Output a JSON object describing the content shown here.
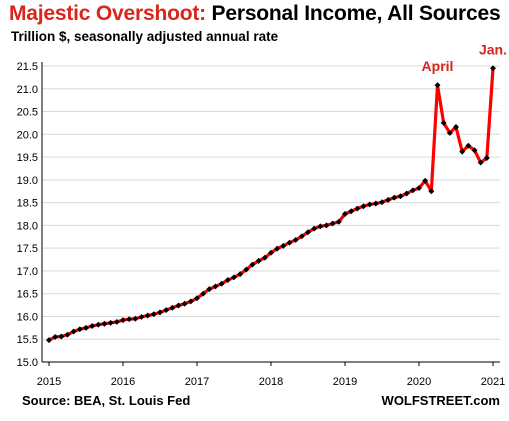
{
  "title": {
    "accent": "Majestic Overshoot:",
    "rest": " Personal Income, All Sources"
  },
  "subtitle": "Trillion $, seasonally adjusted annual rate",
  "source": "Source: BEA, St. Louis Fed",
  "brand": "WOLFSTREET.com",
  "colors": {
    "line": "#ff0000",
    "marker": "#000000",
    "accent": "#d9261c",
    "grid": "#d9d9d9"
  },
  "chart_data": {
    "type": "line",
    "title": "Majestic Overshoot: Personal Income, All Sources",
    "ylabel": "Trillion $, seasonally adjusted annual rate",
    "xlabel": "",
    "x_ticks": [
      "2015",
      "2016",
      "2017",
      "2018",
      "2019",
      "2020",
      "2021"
    ],
    "y_ticks": [
      "15.0",
      "15.5",
      "16.0",
      "16.5",
      "17.0",
      "17.5",
      "18.0",
      "18.5",
      "19.0",
      "19.5",
      "20.0",
      "20.5",
      "21.0",
      "21.5"
    ],
    "ylim": [
      15.0,
      21.5
    ],
    "xlim": [
      "2015-01",
      "2021-01"
    ],
    "grid": "horizontal",
    "markers": true,
    "annotations": [
      {
        "text": "April",
        "x": "2020-04",
        "y": 21.08
      },
      {
        "text": "Jan.",
        "x": "2021-01",
        "y": 21.45
      }
    ],
    "series": [
      {
        "x": [
          "2015-01",
          "2015-02",
          "2015-03",
          "2015-04",
          "2015-05",
          "2015-06",
          "2015-07",
          "2015-08",
          "2015-09",
          "2015-10",
          "2015-11",
          "2015-12",
          "2016-01",
          "2016-02",
          "2016-03",
          "2016-04",
          "2016-05",
          "2016-06",
          "2016-07",
          "2016-08",
          "2016-09",
          "2016-10",
          "2016-11",
          "2016-12",
          "2017-01",
          "2017-02",
          "2017-03",
          "2017-04",
          "2017-05",
          "2017-06",
          "2017-07",
          "2017-08",
          "2017-09",
          "2017-10",
          "2017-11",
          "2017-12",
          "2018-01",
          "2018-02",
          "2018-03",
          "2018-04",
          "2018-05",
          "2018-06",
          "2018-07",
          "2018-08",
          "2018-09",
          "2018-10",
          "2018-11",
          "2018-12",
          "2019-01",
          "2019-02",
          "2019-03",
          "2019-04",
          "2019-05",
          "2019-06",
          "2019-07",
          "2019-08",
          "2019-09",
          "2019-10",
          "2019-11",
          "2019-12",
          "2020-01",
          "2020-02",
          "2020-03",
          "2020-04",
          "2020-05",
          "2020-06",
          "2020-07",
          "2020-08",
          "2020-09",
          "2020-10",
          "2020-11",
          "2020-12",
          "2021-01"
        ],
        "y": [
          15.48,
          15.55,
          15.56,
          15.6,
          15.67,
          15.72,
          15.75,
          15.79,
          15.82,
          15.84,
          15.86,
          15.88,
          15.92,
          15.94,
          15.95,
          15.99,
          16.02,
          16.05,
          16.09,
          16.14,
          16.19,
          16.24,
          16.28,
          16.33,
          16.4,
          16.5,
          16.6,
          16.66,
          16.72,
          16.8,
          16.86,
          16.93,
          17.03,
          17.14,
          17.22,
          17.29,
          17.4,
          17.49,
          17.55,
          17.62,
          17.68,
          17.76,
          17.85,
          17.93,
          17.98,
          18.0,
          18.04,
          18.08,
          18.25,
          18.31,
          18.37,
          18.42,
          18.46,
          18.48,
          18.51,
          18.56,
          18.61,
          18.64,
          18.7,
          18.77,
          18.82,
          18.98,
          18.75,
          21.08,
          20.25,
          20.03,
          20.16,
          19.62,
          19.75,
          19.65,
          19.38,
          19.48,
          21.45
        ]
      }
    ]
  }
}
